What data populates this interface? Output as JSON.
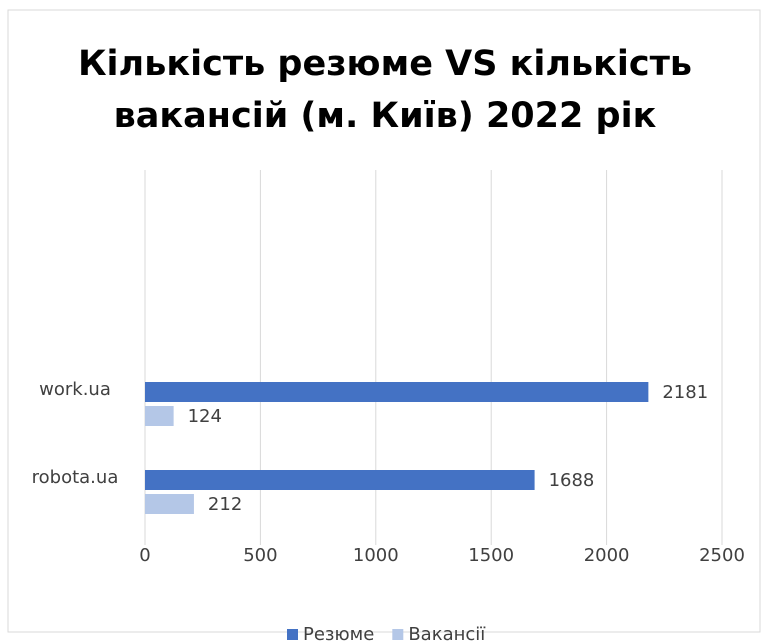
{
  "chart_data": {
    "type": "hbar",
    "title": "Кількість резюме VS кількість вакансій (м. Київ) 2022 рік",
    "categories": [
      "work.ua",
      "robota.ua"
    ],
    "series": [
      {
        "name": "Резюме",
        "color": "#4472c4",
        "values": [
          2181,
          1688
        ]
      },
      {
        "name": "Вакансії",
        "color": "#b4c7e7",
        "values": [
          124,
          212
        ]
      }
    ],
    "xlim": [
      0,
      2500
    ],
    "xticks": [
      0,
      500,
      1000,
      1500,
      2000,
      2500
    ],
    "grid": true,
    "legend": "bottom"
  }
}
